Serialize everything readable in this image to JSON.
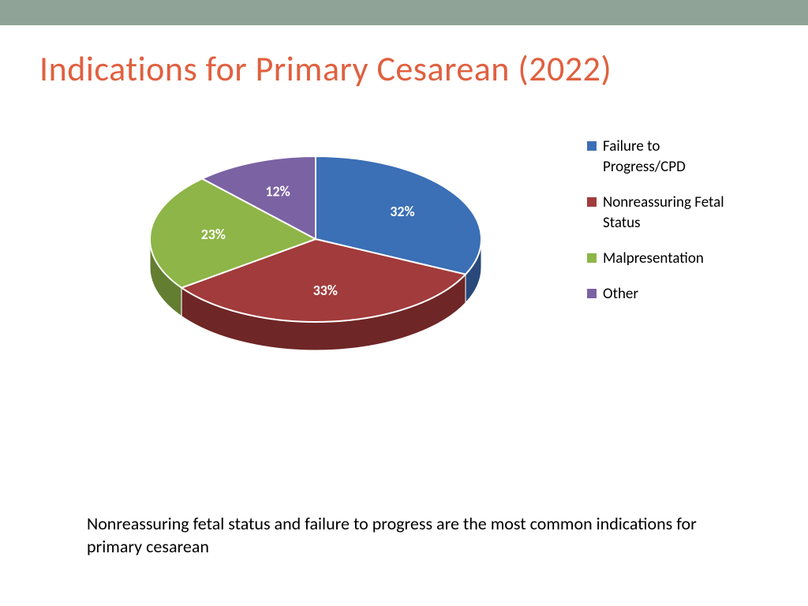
{
  "title": "Indications for Primary Cesarean (2022)",
  "caption": "Nonreassuring fetal status and failure to progress are the most common indications for primary cesarean",
  "chart": {
    "type": "pie-3d",
    "slices": [
      {
        "label": "Failure to Progress/CPD",
        "percent": 32,
        "color": "#3b6fb6",
        "side_color": "#28497a"
      },
      {
        "label": "Nonreassuring Fetal Status",
        "percent": 33,
        "color": "#a23b3b",
        "side_color": "#6f2626"
      },
      {
        "label": "Malpresentation",
        "percent": 23,
        "color": "#8eb547",
        "side_color": "#637e31"
      },
      {
        "label": "Other",
        "percent": 12,
        "color": "#7b62a3",
        "side_color": "#56446f"
      }
    ],
    "label_fontsize": 18,
    "label_color": "#ffffff",
    "label_fontweight": "bold",
    "stroke": "#ffffff",
    "stroke_width": 2,
    "background": "#ffffff",
    "tilt_ratio": 0.5,
    "depth": 36
  },
  "legend": {
    "fontsize": 19,
    "swatch_size": 12,
    "text_color": "#000000"
  },
  "top_bar_color": "#8fa396",
  "title_color": "#e06040",
  "title_fontsize": 44
}
